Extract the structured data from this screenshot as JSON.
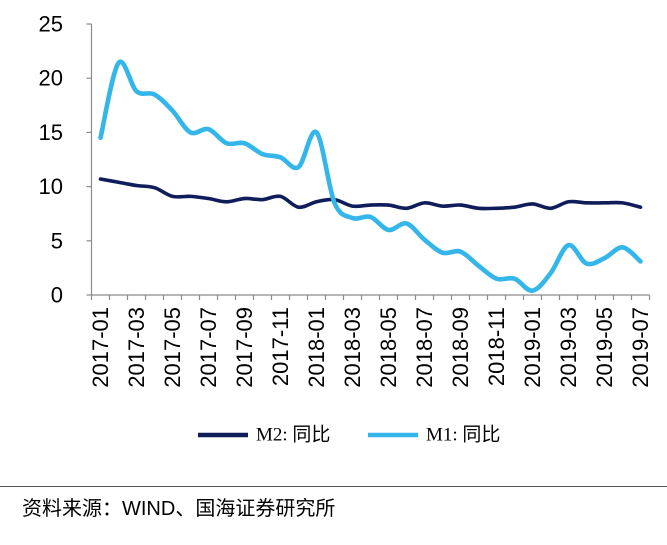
{
  "chart_data": {
    "type": "line",
    "categories": [
      "2017-01",
      "2017-02",
      "2017-03",
      "2017-04",
      "2017-05",
      "2017-06",
      "2017-07",
      "2017-08",
      "2017-09",
      "2017-10",
      "2017-11",
      "2017-12",
      "2018-01",
      "2018-02",
      "2018-03",
      "2018-04",
      "2018-05",
      "2018-06",
      "2018-07",
      "2018-08",
      "2018-09",
      "2018-10",
      "2018-11",
      "2018-12",
      "2019-01",
      "2019-02",
      "2019-03",
      "2019-04",
      "2019-05",
      "2019-06",
      "2019-07"
    ],
    "x_tick_labels": [
      "2017-01",
      "2017-03",
      "2017-05",
      "2017-07",
      "2017-09",
      "2017-11",
      "2018-01",
      "2018-03",
      "2018-05",
      "2018-07",
      "2018-09",
      "2018-11",
      "2019-01",
      "2019-03",
      "2019-05",
      "2019-07"
    ],
    "series": [
      {
        "name": "M2: 同比",
        "color": "#0f1e5a",
        "values": [
          10.7,
          10.4,
          10.1,
          9.9,
          9.1,
          9.1,
          8.9,
          8.6,
          8.9,
          8.8,
          9.1,
          8.1,
          8.6,
          8.8,
          8.2,
          8.3,
          8.3,
          8.0,
          8.5,
          8.2,
          8.3,
          8.0,
          8.0,
          8.1,
          8.4,
          8.0,
          8.6,
          8.5,
          8.5,
          8.5,
          8.1
        ]
      },
      {
        "name": "M1: 同比",
        "color": "#34b6ea",
        "values": [
          14.5,
          21.4,
          18.8,
          18.5,
          17.0,
          15.0,
          15.3,
          14.0,
          14.0,
          13.0,
          12.7,
          11.8,
          15.0,
          8.5,
          7.1,
          7.2,
          6.0,
          6.6,
          5.1,
          3.9,
          4.0,
          2.7,
          1.5,
          1.5,
          0.4,
          2.0,
          4.6,
          2.9,
          3.4,
          4.4,
          3.1
        ]
      }
    ],
    "ylim": [
      0,
      25
    ],
    "yticks": [
      0,
      5,
      10,
      15,
      20,
      25
    ],
    "grid": false,
    "legend": "bottom"
  },
  "source": "资料来源：WIND、国海证券研究所"
}
